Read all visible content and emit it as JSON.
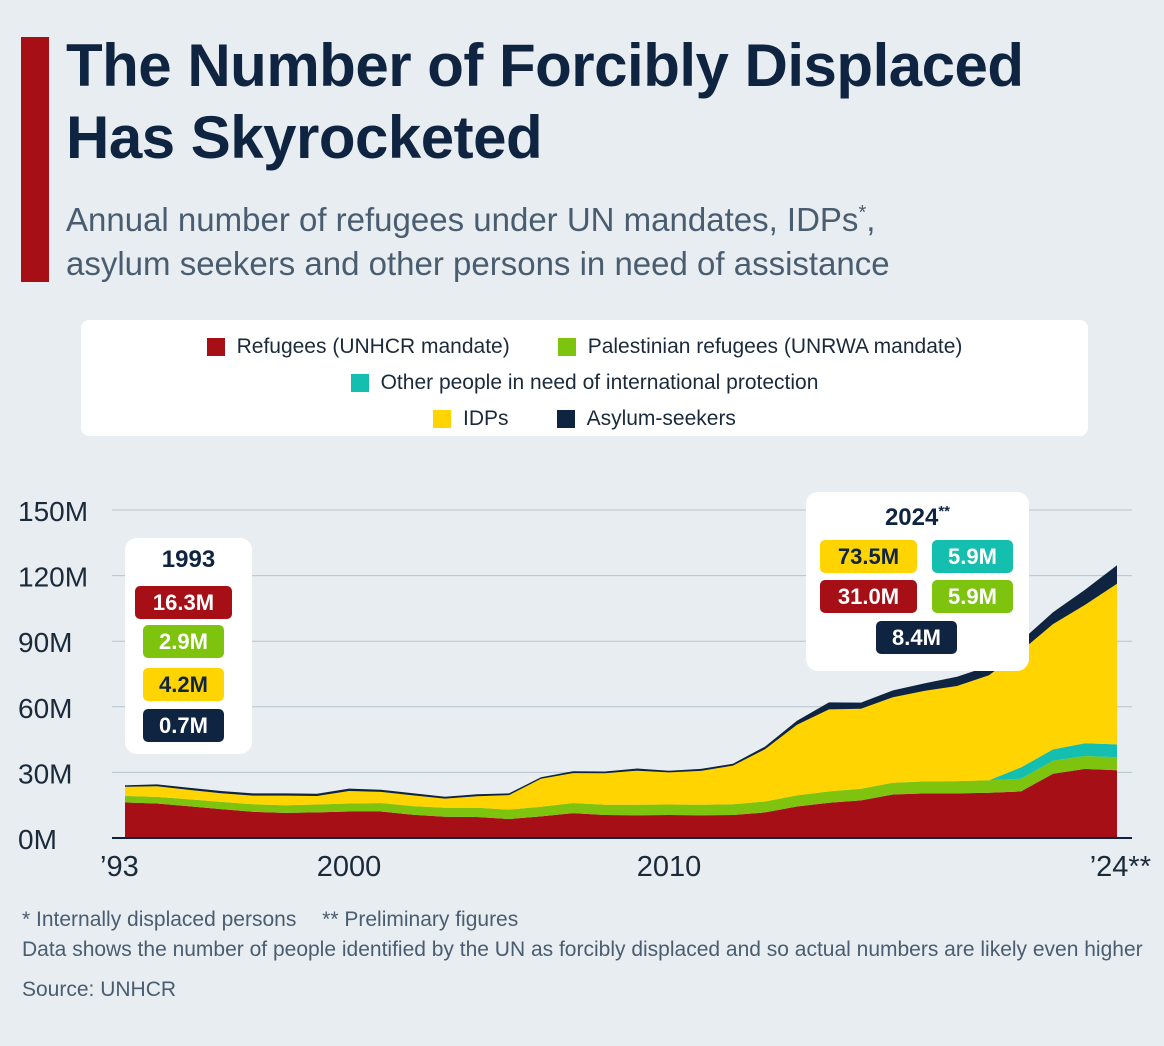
{
  "header": {
    "title": "The Number of Forcibly Displaced Has Skyrocketed",
    "subtitle_line1": "Annual number of refugees under UN mandates, IDPs",
    "subtitle_star": "*",
    "subtitle_comma": ",",
    "subtitle_line2": "asylum seekers and other persons in need of assistance"
  },
  "colors": {
    "refugees": "#a50f15",
    "palestinian": "#7ec40e",
    "other_protection": "#14bfb0",
    "idps": "#ffd400",
    "asylum": "#0f2440",
    "accent": "#a50f15",
    "background": "#e7edf1"
  },
  "legend": {
    "refugees": "Refugees (UNHCR mandate)",
    "palestinian": "Palestinian refugees (UNRWA mandate)",
    "other": "Other people in need of international protection",
    "idps": "IDPs",
    "asylum": "Asylum-seekers"
  },
  "callout_1993": {
    "year": "1993",
    "refugees": "16.3M",
    "palestinian": "2.9M",
    "idps": "4.2M",
    "asylum": "0.7M"
  },
  "callout_2024": {
    "year": "2024",
    "year_mark": "**",
    "idps": "73.5M",
    "other": "5.9M",
    "refugees": "31.0M",
    "palestinian": "5.9M",
    "asylum": "8.4M"
  },
  "chart_data": {
    "type": "area",
    "stacked": true,
    "title": "The Number of Forcibly Displaced Has Skyrocketed",
    "x_labels": [
      "’93",
      "2000",
      "2010",
      "’24**"
    ],
    "x_label_years": [
      1993,
      2000,
      2010,
      2024
    ],
    "x": [
      1993,
      1994,
      1995,
      1996,
      1997,
      1998,
      1999,
      2000,
      2001,
      2002,
      2003,
      2004,
      2005,
      2006,
      2007,
      2008,
      2009,
      2010,
      2011,
      2012,
      2013,
      2014,
      2015,
      2016,
      2017,
      2018,
      2019,
      2020,
      2021,
      2022,
      2023,
      2024
    ],
    "y_ticks": [
      "0M",
      "30M",
      "60M",
      "90M",
      "120M",
      "150M"
    ],
    "y_tick_values": [
      0,
      30,
      60,
      90,
      120,
      150
    ],
    "ylim": [
      0,
      150
    ],
    "grid": true,
    "units": "millions",
    "series": [
      {
        "name": "Refugees (UNHCR mandate)",
        "key": "refugees",
        "values": [
          16.3,
          15.8,
          14.5,
          13.2,
          12.0,
          11.5,
          11.7,
          12.1,
          12.1,
          10.6,
          9.7,
          9.6,
          8.7,
          9.9,
          11.4,
          10.5,
          10.4,
          10.5,
          10.4,
          10.5,
          11.7,
          14.4,
          16.1,
          17.2,
          19.9,
          20.4,
          20.4,
          20.7,
          21.3,
          29.4,
          31.6,
          31.0
        ]
      },
      {
        "name": "Palestinian refugees (UNRWA mandate)",
        "key": "palestinian",
        "values": [
          2.9,
          3.0,
          3.2,
          3.3,
          3.4,
          3.5,
          3.6,
          3.7,
          3.9,
          4.0,
          4.1,
          4.2,
          4.3,
          4.4,
          4.6,
          4.7,
          4.8,
          4.8,
          4.8,
          4.9,
          5.0,
          5.1,
          5.2,
          5.3,
          5.4,
          5.5,
          5.6,
          5.7,
          5.8,
          5.9,
          5.9,
          5.9
        ]
      },
      {
        "name": "Other people in need of international protection",
        "key": "other",
        "values": [
          0,
          0,
          0,
          0,
          0,
          0,
          0,
          0,
          0,
          0,
          0,
          0,
          0,
          0,
          0,
          0,
          0,
          0,
          0,
          0,
          0,
          0,
          0,
          0,
          0,
          0,
          0,
          0,
          5.2,
          5.2,
          5.8,
          5.9
        ]
      },
      {
        "name": "IDPs",
        "key": "idps",
        "values": [
          4.2,
          4.9,
          4.3,
          4.0,
          4.0,
          4.4,
          3.9,
          5.7,
          5.1,
          4.9,
          4.2,
          5.3,
          6.6,
          12.8,
          13.7,
          14.4,
          15.6,
          14.7,
          15.5,
          17.7,
          23.9,
          32.3,
          37.5,
          36.6,
          39.1,
          41.4,
          43.5,
          48.0,
          53.2,
          57.3,
          63.3,
          73.5
        ]
      },
      {
        "name": "Asylum-seekers",
        "key": "asylum",
        "values": [
          0.7,
          0.8,
          1.0,
          1.0,
          1.0,
          1.0,
          1.0,
          1.1,
          1.0,
          1.0,
          0.9,
          0.9,
          0.8,
          0.7,
          0.8,
          0.8,
          1.0,
          0.8,
          0.9,
          0.9,
          1.2,
          1.8,
          3.2,
          2.8,
          3.1,
          3.5,
          4.2,
          4.2,
          4.6,
          5.4,
          6.9,
          8.4
        ]
      }
    ]
  },
  "footer": {
    "note_idp": "* Internally displaced persons",
    "note_prelim": "** Preliminary figures",
    "note_data": "Data shows the number of people identified by the UN as forcibly displaced and so actual numbers are likely even higher",
    "source": "Source: UNHCR"
  }
}
